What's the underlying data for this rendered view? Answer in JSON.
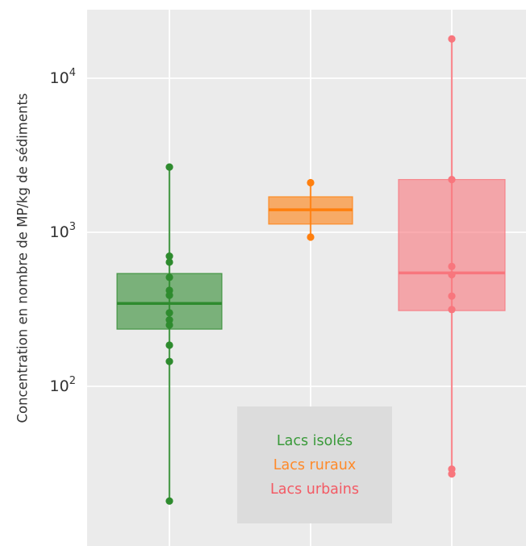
{
  "chart_data": {
    "type": "box",
    "ylabel": "Concentration en nombre de MP/kg de sédiments",
    "yscale": "log",
    "ylim": [
      10,
      25000
    ],
    "yticks": [
      {
        "base": "10",
        "exp": "2",
        "value": 100
      },
      {
        "base": "10",
        "exp": "3",
        "value": 1000
      },
      {
        "base": "10",
        "exp": "4",
        "value": 10000
      }
    ],
    "grid": true,
    "legend_position": "bottom-center",
    "series": [
      {
        "name": "Lacs isolés",
        "color": "#2e8b2e",
        "box": {
          "q1": 235,
          "median": 345,
          "q3": 540
        },
        "whisker": [
          18,
          2650
        ],
        "points": [
          2650,
          700,
          640,
          510,
          420,
          390,
          300,
          270,
          250,
          185,
          145,
          18
        ]
      },
      {
        "name": "Lacs ruraux",
        "color": "#ff7f0e",
        "box": {
          "q1": 1130,
          "median": 1400,
          "q3": 1700
        },
        "whisker": [
          930,
          2100
        ],
        "points": [
          2100,
          930
        ]
      },
      {
        "name": "Lacs urbains",
        "color": "#f8767d",
        "box": {
          "q1": 310,
          "median": 545,
          "q3": 2200
        },
        "whisker": [
          27,
          18000
        ],
        "points": [
          18000,
          2200,
          600,
          530,
          385,
          315,
          29,
          27
        ]
      }
    ]
  },
  "legend": {
    "items": [
      {
        "label": "Lacs isolés",
        "color": "#3a9a3a"
      },
      {
        "label": "Lacs ruraux",
        "color": "#ff8a2a"
      },
      {
        "label": "Lacs urbains",
        "color": "#f35a64"
      }
    ]
  }
}
